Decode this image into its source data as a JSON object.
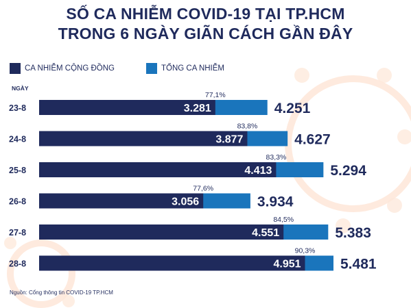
{
  "title_line1": "SỐ CA NHIỄM COVID-19 TẠI TP.HCM",
  "title_line2": "TRONG 6 NGÀY GIÃN CÁCH GẦN ĐÂY",
  "legend": [
    {
      "label": "CA NHIỄM CỘNG ĐỒNG",
      "color": "#1f2a5c"
    },
    {
      "label": "TỔNG CA NHIỄM",
      "color": "#1a75bc"
    }
  ],
  "axis_label": "NGÀY",
  "source": "Nguồn: Cổng thông tin COVID-19 TP.HCM",
  "chart_data": {
    "type": "bar",
    "orientation": "horizontal",
    "categories": [
      "23-8",
      "24-8",
      "25-8",
      "26-8",
      "27-8",
      "28-8"
    ],
    "series": [
      {
        "name": "CA NHIỄM CỘNG ĐỒNG",
        "color": "#1f2a5c",
        "values": [
          3281,
          3877,
          4413,
          3056,
          4551,
          4951
        ],
        "labels": [
          "3.281",
          "3.877",
          "4.413",
          "3.056",
          "4.551",
          "4.951"
        ]
      },
      {
        "name": "TỔNG CA NHIỄM",
        "color": "#1a75bc",
        "values": [
          4251,
          4627,
          5294,
          3934,
          5383,
          5481
        ],
        "labels": [
          "4.251",
          "4.627",
          "5.294",
          "3.934",
          "5.383",
          "5.481"
        ]
      }
    ],
    "percent_labels": [
      "77,1%",
      "83,8%",
      "83,3%",
      "77,6%",
      "84,5%",
      "90,3%"
    ],
    "xlim": [
      0,
      5481
    ],
    "grid": false,
    "legend_position": "top-left"
  }
}
